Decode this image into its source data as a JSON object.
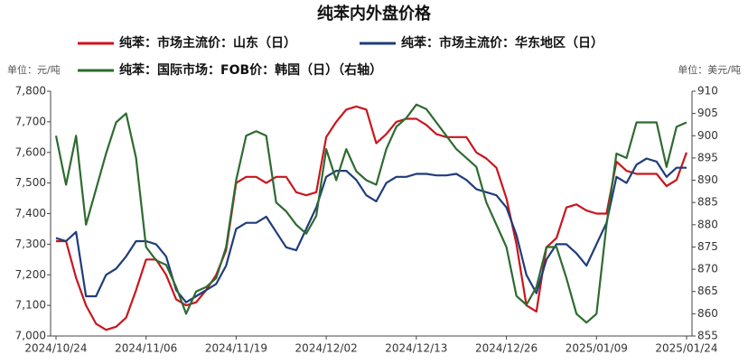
{
  "chart_data": {
    "type": "line",
    "title": "纯苯内外盘价格",
    "y_unit": "单位：元/吨",
    "y2_unit": "单位：美元/吨",
    "categories": [
      "2024/10/24",
      null,
      null,
      null,
      null,
      null,
      null,
      null,
      null,
      "2024/11/06",
      null,
      null,
      null,
      null,
      null,
      null,
      null,
      null,
      "2024/11/19",
      null,
      null,
      null,
      null,
      null,
      null,
      null,
      null,
      "2024/12/02",
      null,
      null,
      null,
      null,
      null,
      null,
      null,
      null,
      "2024/12/13",
      null,
      null,
      null,
      null,
      null,
      null,
      null,
      null,
      "2024/12/26",
      null,
      null,
      null,
      null,
      null,
      null,
      null,
      null,
      "2025/01/09",
      null,
      null,
      null,
      null,
      null,
      null,
      null,
      null,
      "2025/01/24"
    ],
    "series": [
      {
        "name": "纯苯：市场主流价：山东（日）",
        "color": "#c8161d",
        "values": [
          7310,
          7310,
          7190,
          7100,
          7040,
          7020,
          7030,
          7060,
          7150,
          7250,
          7250,
          7200,
          7120,
          7100,
          7110,
          7150,
          7200,
          7280,
          7500,
          7520,
          7520,
          7500,
          7520,
          7520,
          7470,
          7460,
          7470,
          7650,
          7700,
          7740,
          7750,
          7740,
          7630,
          7660,
          7700,
          7710,
          7710,
          7690,
          7660,
          7650,
          7650,
          7650,
          7600,
          7580,
          7550,
          7450,
          7300,
          7100,
          7080,
          7290,
          7320,
          7420,
          7430,
          7410,
          7400,
          7400,
          7570,
          7540,
          7530,
          7530,
          7530,
          7490,
          7510,
          7600
        ]
      },
      {
        "name": "纯苯：市场主流价：华东地区（日）",
        "color": "#1f3d7a",
        "values": [
          7320,
          7310,
          7340,
          7130,
          7130,
          7200,
          7220,
          7260,
          7310,
          7310,
          7300,
          7260,
          7150,
          7110,
          7130,
          7150,
          7170,
          7230,
          7350,
          7370,
          7370,
          7390,
          7340,
          7290,
          7280,
          7350,
          7420,
          7520,
          7540,
          7540,
          7510,
          7460,
          7440,
          7500,
          7520,
          7520,
          7530,
          7530,
          7525,
          7525,
          7530,
          7510,
          7480,
          7470,
          7460,
          7420,
          7330,
          7200,
          7140,
          7250,
          7300,
          7300,
          7270,
          7230,
          7300,
          7370,
          7520,
          7500,
          7560,
          7580,
          7570,
          7520,
          7550,
          7550
        ]
      },
      {
        "name": "纯苯：国际市场：FOB价：韩国（日）（右轴）",
        "color": "#2e6b30",
        "axis": "y2",
        "values": [
          900,
          889,
          900,
          880,
          888,
          896,
          903,
          905,
          895,
          875,
          872,
          871,
          866,
          860,
          865,
          866,
          868,
          875,
          890,
          900,
          901,
          900,
          885,
          883,
          880,
          878,
          882,
          897,
          890,
          897,
          892,
          890,
          889,
          897,
          902,
          904,
          907,
          906,
          903,
          900,
          897,
          895,
          893,
          885,
          880,
          875,
          864,
          862,
          866,
          875,
          875,
          868,
          860,
          858,
          860,
          880,
          896,
          895,
          903,
          903,
          903,
          893,
          902,
          903
        ]
      }
    ],
    "ylim": [
      7000,
      7800
    ],
    "yticks": [
      {
        "value": 7000,
        "label": "7,000"
      },
      {
        "value": 7100,
        "label": "7,100"
      },
      {
        "value": 7200,
        "label": "7,200"
      },
      {
        "value": 7300,
        "label": "7,300"
      },
      {
        "value": 7400,
        "label": "7,400"
      },
      {
        "value": 7500,
        "label": "7,500"
      },
      {
        "value": 7600,
        "label": "7,600"
      },
      {
        "value": 7700,
        "label": "7,700"
      },
      {
        "value": 7800,
        "label": "7,800"
      }
    ],
    "y2lim": [
      855,
      910
    ],
    "y2ticks": [
      855,
      860,
      865,
      870,
      875,
      880,
      885,
      890,
      895,
      900,
      905,
      910
    ]
  }
}
